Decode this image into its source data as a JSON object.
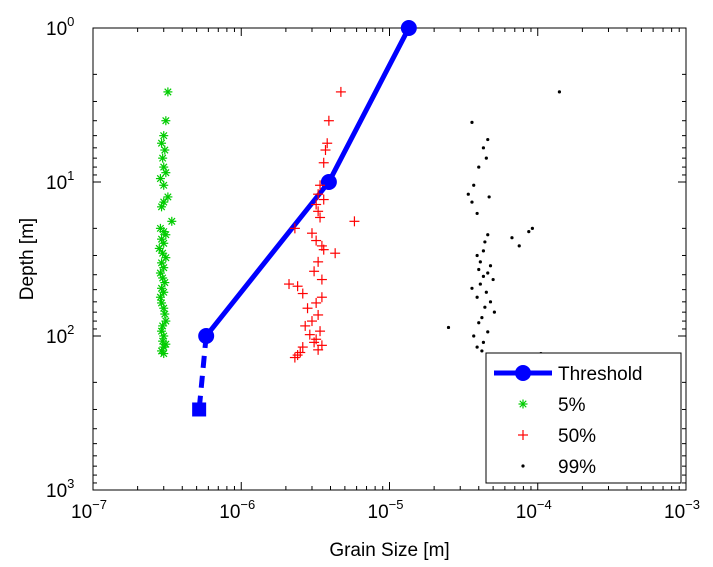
{
  "chart_data": {
    "type": "scatter",
    "xlabel": "Grain Size [m]",
    "ylabel": "Depth [m]",
    "xscale": "log",
    "yscale": "log",
    "y_reversed": true,
    "xlim": [
      1e-07,
      0.001
    ],
    "ylim": [
      1,
      1000
    ],
    "x_ticks": [
      {
        "value": 1e-07,
        "base": "10",
        "exp": "−7"
      },
      {
        "value": 1e-06,
        "base": "10",
        "exp": "−6"
      },
      {
        "value": 1e-05,
        "base": "10",
        "exp": "−5"
      },
      {
        "value": 0.0001,
        "base": "10",
        "exp": "−4"
      },
      {
        "value": 0.001,
        "base": "10",
        "exp": "−3"
      }
    ],
    "y_ticks": [
      {
        "value": 1,
        "base": "10",
        "exp": "0"
      },
      {
        "value": 10,
        "base": "10",
        "exp": "1"
      },
      {
        "value": 100,
        "base": "10",
        "exp": "2"
      },
      {
        "value": 1000,
        "base": "10",
        "exp": "3"
      }
    ],
    "grid": false,
    "legend_position": "bottom-right",
    "series": [
      {
        "name": "Threshold",
        "kind": "line",
        "color": "#0000ff",
        "x": [
          1.35e-05,
          3.9e-06,
          5.8e-07
        ],
        "y": [
          1,
          10,
          100
        ]
      },
      {
        "name": "Threshold-extrapolation",
        "kind": "dashed",
        "color": "#0000ff",
        "x": [
          5.8e-07,
          5.2e-07
        ],
        "y": [
          100,
          300
        ]
      },
      {
        "name": "5%",
        "kind": "marker",
        "marker": "asterisk",
        "color": "#00cc00",
        "x": [
          3.2e-07,
          3.1e-07,
          3e-07,
          2.9e-07,
          3.05e-07,
          2.95e-07,
          3e-07,
          3.1e-07,
          2.85e-07,
          3e-07,
          3.2e-07,
          3.4e-07,
          3e-07,
          2.9e-07,
          2.85e-07,
          3e-07,
          3.1e-07,
          2.9e-07,
          3e-07,
          2.8e-07,
          2.95e-07,
          3.1e-07,
          2.9e-07,
          3e-07,
          2.85e-07,
          2.95e-07,
          3.05e-07,
          2.9e-07,
          3e-07,
          2.85e-07,
          2.9e-07,
          3e-07,
          3.05e-07,
          3.1e-07,
          2.95e-07,
          2.9e-07,
          3e-07,
          2.95e-07,
          3.1e-07,
          3e-07,
          2.9e-07,
          3e-07
        ],
        "y": [
          2.6,
          4.0,
          5.0,
          5.6,
          6.2,
          7.0,
          8.0,
          8.7,
          9.5,
          10.5,
          12.5,
          18.0,
          13.5,
          14.5,
          20.0,
          21.0,
          22.0,
          23.5,
          25.0,
          27.0,
          29.0,
          31.0,
          33.5,
          36.0,
          39.0,
          42.0,
          45.0,
          49.0,
          52.0,
          56.0,
          61.0,
          66.0,
          72.0,
          80.0,
          86.0,
          93.0,
          100.0,
          108.0,
          113.0,
          118.0,
          125.0,
          130.0
        ]
      },
      {
        "name": "50%",
        "kind": "marker",
        "marker": "plus",
        "color": "#ff0000",
        "x": [
          4.7e-06,
          3.9e-06,
          3.8e-06,
          3.7e-06,
          3.6e-06,
          3.4e-06,
          3.3e-06,
          3.6e-06,
          3.2e-06,
          3.3e-06,
          3.4e-06,
          5.8e-06,
          2.3e-06,
          3e-06,
          3.2e-06,
          3.5e-06,
          3.6e-06,
          4.3e-06,
          3.3e-06,
          3.1e-06,
          3.5e-06,
          2.1e-06,
          2.4e-06,
          2.6e-06,
          3.5e-06,
          3.2e-06,
          2.8e-06,
          3.3e-06,
          3e-06,
          2.7e-06,
          3.4e-06,
          2.9e-06,
          3.2e-06,
          3.1e-06,
          3.5e-06,
          2.6e-06,
          3.3e-06,
          2.5e-06,
          2.4e-06,
          2.3e-06
        ],
        "y": [
          2.6,
          4.0,
          5.6,
          6.2,
          7.5,
          10.5,
          12.0,
          13.0,
          14.0,
          15.5,
          17.0,
          18.0,
          20.0,
          21.5,
          24.0,
          26.0,
          27.5,
          29.0,
          33.0,
          38.0,
          43.0,
          46.0,
          47.5,
          53.0,
          56.0,
          61.0,
          66.0,
          73.0,
          80.0,
          86.0,
          93.0,
          98.0,
          105.0,
          110.0,
          115.0,
          118.0,
          123.0,
          128.0,
          133.0,
          138.0
        ]
      },
      {
        "name": "99%",
        "kind": "marker",
        "marker": "dot",
        "color": "#000000",
        "x": [
          0.00014,
          3.6e-05,
          4.6e-05,
          4.3e-05,
          4.5e-05,
          4e-05,
          3.7e-05,
          3.4e-05,
          4.7e-05,
          3.6e-05,
          3.9e-05,
          9.2e-05,
          8.7e-05,
          4.6e-05,
          6.7e-05,
          4.4e-05,
          7.5e-05,
          4.3e-05,
          3.9e-05,
          4.1e-05,
          4.8e-05,
          4e-05,
          4.6e-05,
          4.3e-05,
          5e-05,
          4.1e-05,
          3.6e-05,
          4.5e-05,
          3.9e-05,
          4.8e-05,
          4.4e-05,
          5.1e-05,
          4.2e-05,
          4e-05,
          2.5e-05,
          4.6e-05,
          3.7e-05,
          4.3e-05,
          3.9e-05,
          4.2e-05,
          0.000105
        ],
        "y": [
          2.6,
          4.1,
          5.3,
          6.0,
          7.0,
          8.0,
          10.5,
          12.0,
          12.5,
          13.5,
          16.0,
          20.0,
          21.0,
          22.0,
          23.0,
          24.5,
          26.0,
          28.0,
          30.0,
          33.0,
          35.0,
          37.0,
          39.0,
          41.0,
          43.0,
          46.0,
          49.0,
          52.0,
          56.0,
          60.0,
          65.0,
          70.0,
          76.0,
          82.0,
          88.0,
          94.0,
          100.0,
          110.0,
          118.0,
          125.0,
          130.0
        ]
      }
    ],
    "legend": [
      {
        "label": "Threshold",
        "marker": "line-circle",
        "color": "#0000ff"
      },
      {
        "label": "5%",
        "marker": "asterisk",
        "color": "#00cc00"
      },
      {
        "label": "50%",
        "marker": "plus",
        "color": "#ff0000"
      },
      {
        "label": "99%",
        "marker": "dot",
        "color": "#000000"
      }
    ]
  }
}
